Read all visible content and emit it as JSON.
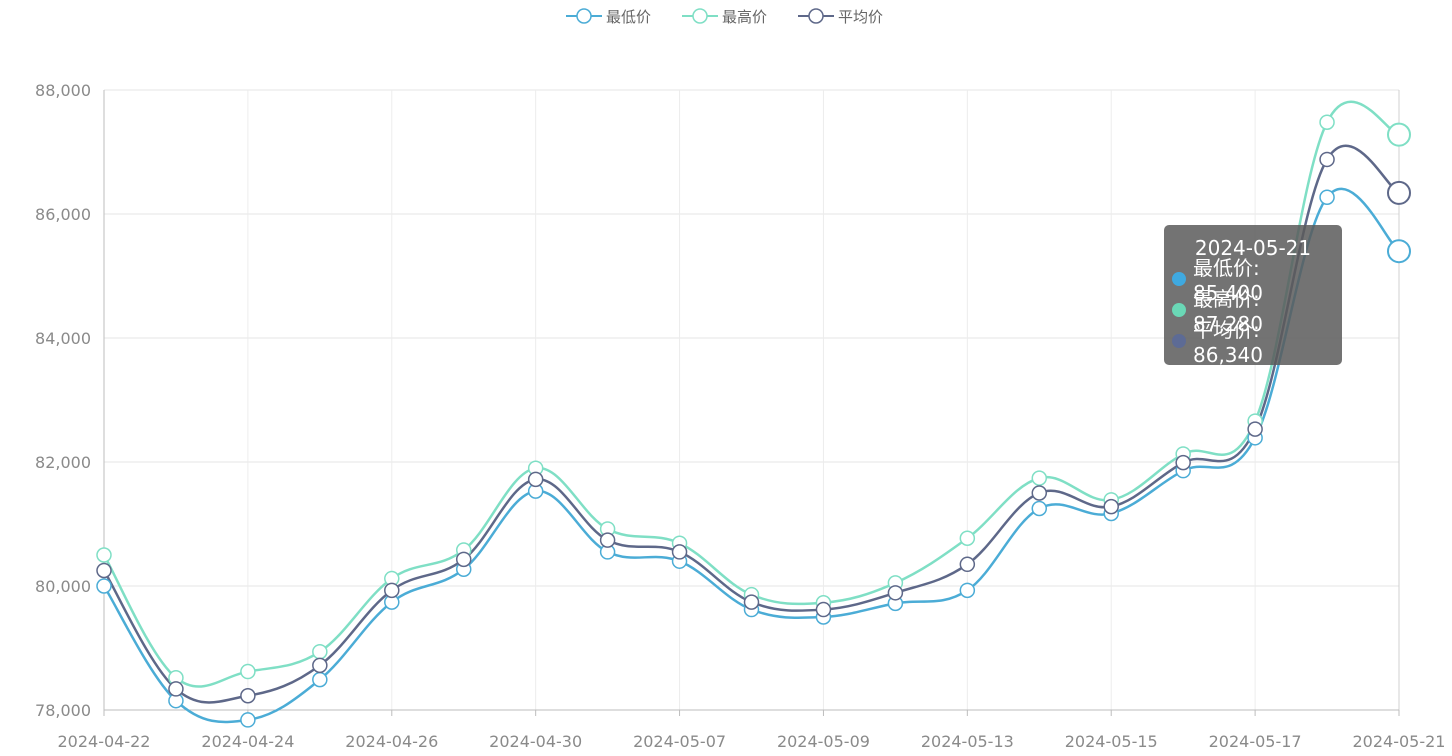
{
  "legend": {
    "items": [
      {
        "label": "最低价",
        "color": "#4BACD6"
      },
      {
        "label": "最高价",
        "color": "#7FDFC5"
      },
      {
        "label": "平均价",
        "color": "#5E6889"
      }
    ]
  },
  "tooltip": {
    "title": "2024-05-21",
    "rows": [
      {
        "text": "最低价: 85,400",
        "color": "#3FA9E0"
      },
      {
        "text": "最高价: 87,280",
        "color": "#6AD8B6"
      },
      {
        "text": "平均价: 86,340",
        "color": "#5D6B95"
      }
    ]
  },
  "chart_data": {
    "type": "line",
    "smooth": true,
    "title": "",
    "xlabel": "",
    "ylabel": "",
    "ylim": [
      78000,
      88000
    ],
    "yticks": [
      78000,
      80000,
      82000,
      84000,
      86000,
      88000
    ],
    "ytick_labels": [
      "78,000",
      "80,000",
      "82,000",
      "84,000",
      "86,000",
      "88,000"
    ],
    "grid": true,
    "legend_position": "top-center",
    "x": [
      "2024-04-22",
      "2024-04-23",
      "2024-04-24",
      "2024-04-25",
      "2024-04-26",
      "2024-04-28",
      "2024-04-30",
      "2024-05-06",
      "2024-05-07",
      "2024-05-08",
      "2024-05-09",
      "2024-05-10",
      "2024-05-13",
      "2024-05-14",
      "2024-05-15",
      "2024-05-16",
      "2024-05-17",
      "2024-05-20",
      "2024-05-21"
    ],
    "x_tick_labels": [
      "2024-04-22",
      "",
      "2024-04-24",
      "",
      "2024-04-26",
      "",
      "2024-04-30",
      "",
      "2024-05-07",
      "",
      "2024-05-09",
      "",
      "2024-05-13",
      "",
      "2024-05-15",
      "",
      "2024-05-17",
      "",
      "2024-05-21"
    ],
    "highlight_index": 18,
    "series": [
      {
        "name": "最低价",
        "color": "#4BACD6",
        "values": [
          80000,
          78150,
          77840,
          78490,
          79740,
          80270,
          81530,
          80550,
          80400,
          79620,
          79500,
          79720,
          79930,
          81250,
          81170,
          81860,
          82390,
          86270,
          85400
        ]
      },
      {
        "name": "最高价",
        "color": "#7FDFC5",
        "values": [
          80500,
          78520,
          78620,
          78940,
          80120,
          80580,
          81900,
          80920,
          80690,
          79860,
          79730,
          80050,
          80770,
          81740,
          81390,
          82130,
          82660,
          87480,
          87280
        ]
      },
      {
        "name": "平均价",
        "color": "#5E6889",
        "values": [
          80250,
          78340,
          78230,
          78720,
          79930,
          80430,
          81720,
          80740,
          80550,
          79740,
          79620,
          79890,
          80350,
          81500,
          81280,
          81990,
          82530,
          86880,
          86340
        ]
      }
    ]
  }
}
